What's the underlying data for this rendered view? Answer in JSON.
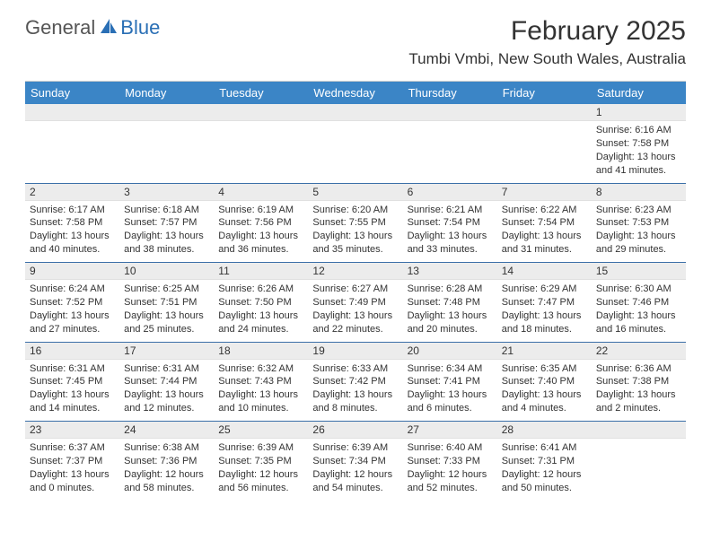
{
  "logo": {
    "general": "General",
    "blue": "Blue"
  },
  "title": "February 2025",
  "location": "Tumbi Vmbi, New South Wales, Australia",
  "colors": {
    "header_bg": "#3b85c6",
    "header_text": "#ffffff",
    "day_header_bg": "#ececec",
    "divider": "#3b6fa8",
    "logo_blue": "#2a6fb5",
    "text": "#333333"
  },
  "weekdays": [
    "Sunday",
    "Monday",
    "Tuesday",
    "Wednesday",
    "Thursday",
    "Friday",
    "Saturday"
  ],
  "weeks": [
    [
      null,
      null,
      null,
      null,
      null,
      null,
      {
        "d": "1",
        "sr": "Sunrise: 6:16 AM",
        "ss": "Sunset: 7:58 PM",
        "dl": "Daylight: 13 hours and 41 minutes."
      }
    ],
    [
      {
        "d": "2",
        "sr": "Sunrise: 6:17 AM",
        "ss": "Sunset: 7:58 PM",
        "dl": "Daylight: 13 hours and 40 minutes."
      },
      {
        "d": "3",
        "sr": "Sunrise: 6:18 AM",
        "ss": "Sunset: 7:57 PM",
        "dl": "Daylight: 13 hours and 38 minutes."
      },
      {
        "d": "4",
        "sr": "Sunrise: 6:19 AM",
        "ss": "Sunset: 7:56 PM",
        "dl": "Daylight: 13 hours and 36 minutes."
      },
      {
        "d": "5",
        "sr": "Sunrise: 6:20 AM",
        "ss": "Sunset: 7:55 PM",
        "dl": "Daylight: 13 hours and 35 minutes."
      },
      {
        "d": "6",
        "sr": "Sunrise: 6:21 AM",
        "ss": "Sunset: 7:54 PM",
        "dl": "Daylight: 13 hours and 33 minutes."
      },
      {
        "d": "7",
        "sr": "Sunrise: 6:22 AM",
        "ss": "Sunset: 7:54 PM",
        "dl": "Daylight: 13 hours and 31 minutes."
      },
      {
        "d": "8",
        "sr": "Sunrise: 6:23 AM",
        "ss": "Sunset: 7:53 PM",
        "dl": "Daylight: 13 hours and 29 minutes."
      }
    ],
    [
      {
        "d": "9",
        "sr": "Sunrise: 6:24 AM",
        "ss": "Sunset: 7:52 PM",
        "dl": "Daylight: 13 hours and 27 minutes."
      },
      {
        "d": "10",
        "sr": "Sunrise: 6:25 AM",
        "ss": "Sunset: 7:51 PM",
        "dl": "Daylight: 13 hours and 25 minutes."
      },
      {
        "d": "11",
        "sr": "Sunrise: 6:26 AM",
        "ss": "Sunset: 7:50 PM",
        "dl": "Daylight: 13 hours and 24 minutes."
      },
      {
        "d": "12",
        "sr": "Sunrise: 6:27 AM",
        "ss": "Sunset: 7:49 PM",
        "dl": "Daylight: 13 hours and 22 minutes."
      },
      {
        "d": "13",
        "sr": "Sunrise: 6:28 AM",
        "ss": "Sunset: 7:48 PM",
        "dl": "Daylight: 13 hours and 20 minutes."
      },
      {
        "d": "14",
        "sr": "Sunrise: 6:29 AM",
        "ss": "Sunset: 7:47 PM",
        "dl": "Daylight: 13 hours and 18 minutes."
      },
      {
        "d": "15",
        "sr": "Sunrise: 6:30 AM",
        "ss": "Sunset: 7:46 PM",
        "dl": "Daylight: 13 hours and 16 minutes."
      }
    ],
    [
      {
        "d": "16",
        "sr": "Sunrise: 6:31 AM",
        "ss": "Sunset: 7:45 PM",
        "dl": "Daylight: 13 hours and 14 minutes."
      },
      {
        "d": "17",
        "sr": "Sunrise: 6:31 AM",
        "ss": "Sunset: 7:44 PM",
        "dl": "Daylight: 13 hours and 12 minutes."
      },
      {
        "d": "18",
        "sr": "Sunrise: 6:32 AM",
        "ss": "Sunset: 7:43 PM",
        "dl": "Daylight: 13 hours and 10 minutes."
      },
      {
        "d": "19",
        "sr": "Sunrise: 6:33 AM",
        "ss": "Sunset: 7:42 PM",
        "dl": "Daylight: 13 hours and 8 minutes."
      },
      {
        "d": "20",
        "sr": "Sunrise: 6:34 AM",
        "ss": "Sunset: 7:41 PM",
        "dl": "Daylight: 13 hours and 6 minutes."
      },
      {
        "d": "21",
        "sr": "Sunrise: 6:35 AM",
        "ss": "Sunset: 7:40 PM",
        "dl": "Daylight: 13 hours and 4 minutes."
      },
      {
        "d": "22",
        "sr": "Sunrise: 6:36 AM",
        "ss": "Sunset: 7:38 PM",
        "dl": "Daylight: 13 hours and 2 minutes."
      }
    ],
    [
      {
        "d": "23",
        "sr": "Sunrise: 6:37 AM",
        "ss": "Sunset: 7:37 PM",
        "dl": "Daylight: 13 hours and 0 minutes."
      },
      {
        "d": "24",
        "sr": "Sunrise: 6:38 AM",
        "ss": "Sunset: 7:36 PM",
        "dl": "Daylight: 12 hours and 58 minutes."
      },
      {
        "d": "25",
        "sr": "Sunrise: 6:39 AM",
        "ss": "Sunset: 7:35 PM",
        "dl": "Daylight: 12 hours and 56 minutes."
      },
      {
        "d": "26",
        "sr": "Sunrise: 6:39 AM",
        "ss": "Sunset: 7:34 PM",
        "dl": "Daylight: 12 hours and 54 minutes."
      },
      {
        "d": "27",
        "sr": "Sunrise: 6:40 AM",
        "ss": "Sunset: 7:33 PM",
        "dl": "Daylight: 12 hours and 52 minutes."
      },
      {
        "d": "28",
        "sr": "Sunrise: 6:41 AM",
        "ss": "Sunset: 7:31 PM",
        "dl": "Daylight: 12 hours and 50 minutes."
      },
      null
    ]
  ]
}
